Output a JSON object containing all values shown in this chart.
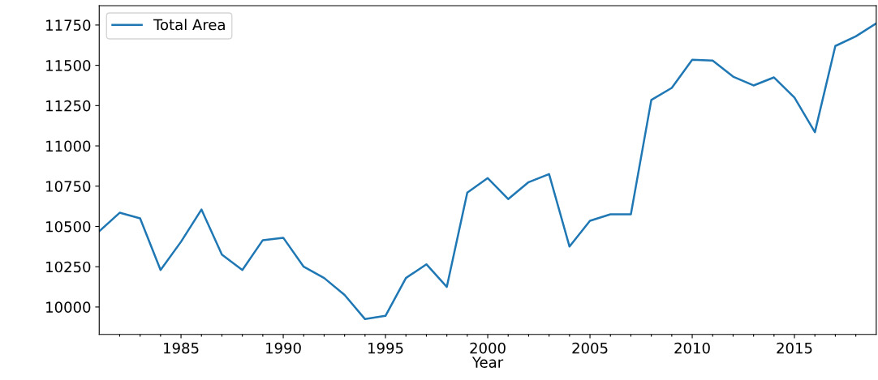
{
  "chart_data": {
    "type": "line",
    "xlabel": "Year",
    "legend": "top left",
    "x": [
      1981,
      1982,
      1983,
      1984,
      1985,
      1986,
      1987,
      1988,
      1989,
      1990,
      1991,
      1992,
      1993,
      1994,
      1995,
      1996,
      1997,
      1998,
      1999,
      2000,
      2001,
      2002,
      2003,
      2004,
      2005,
      2006,
      2007,
      2008,
      2009,
      2010,
      2011,
      2012,
      2013,
      2014,
      2015,
      2016,
      2017,
      2018,
      2019
    ],
    "series": [
      {
        "name": "Total Area",
        "color": "#1f77b4",
        "values": [
          10470,
          10585,
          10550,
          10230,
          10405,
          10605,
          10325,
          10230,
          10415,
          10430,
          10250,
          10180,
          10075,
          9925,
          9945,
          10180,
          10265,
          10125,
          10710,
          10800,
          10670,
          10775,
          10825,
          10375,
          10535,
          10575,
          10575,
          11285,
          11360,
          11535,
          11530,
          11430,
          11375,
          11425,
          11300,
          11085,
          11620,
          11680,
          11760
        ]
      }
    ],
    "xlim": [
      1981,
      2019
    ],
    "xticks": [
      {
        "value": 1982,
        "label": null
      },
      {
        "value": 1983,
        "label": null
      },
      {
        "value": 1984,
        "label": null
      },
      1985,
      {
        "value": 1986,
        "label": null
      },
      {
        "value": 1987,
        "label": null
      },
      {
        "value": 1988,
        "label": null
      },
      {
        "value": 1989,
        "label": null
      },
      1990,
      {
        "value": 1991,
        "label": null
      },
      {
        "value": 1992,
        "label": null
      },
      {
        "value": 1993,
        "label": null
      },
      {
        "value": 1994,
        "label": null
      },
      1995,
      {
        "value": 1996,
        "label": null
      },
      {
        "value": 1997,
        "label": null
      },
      {
        "value": 1998,
        "label": null
      },
      {
        "value": 1999,
        "label": null
      },
      2000,
      {
        "value": 2001,
        "label": null
      },
      {
        "value": 2002,
        "label": null
      },
      {
        "value": 2003,
        "label": null
      },
      {
        "value": 2004,
        "label": null
      },
      2005,
      {
        "value": 2006,
        "label": null
      },
      {
        "value": 2007,
        "label": null
      },
      {
        "value": 2008,
        "label": null
      },
      {
        "value": 2009,
        "label": null
      },
      2010,
      {
        "value": 2011,
        "label": null
      },
      {
        "value": 2012,
        "label": null
      },
      {
        "value": 2013,
        "label": null
      },
      {
        "value": 2014,
        "label": null
      },
      2015,
      {
        "value": 2016,
        "label": null
      },
      {
        "value": 2017,
        "label": null
      },
      {
        "value": 2018,
        "label": null
      }
    ],
    "ylim": [
      9830,
      11870
    ],
    "yticks": [
      10000,
      10250,
      10500,
      10750,
      11000,
      11250,
      11500,
      11750
    ],
    "grid": false,
    "marker": "none",
    "line_style": "solid"
  }
}
